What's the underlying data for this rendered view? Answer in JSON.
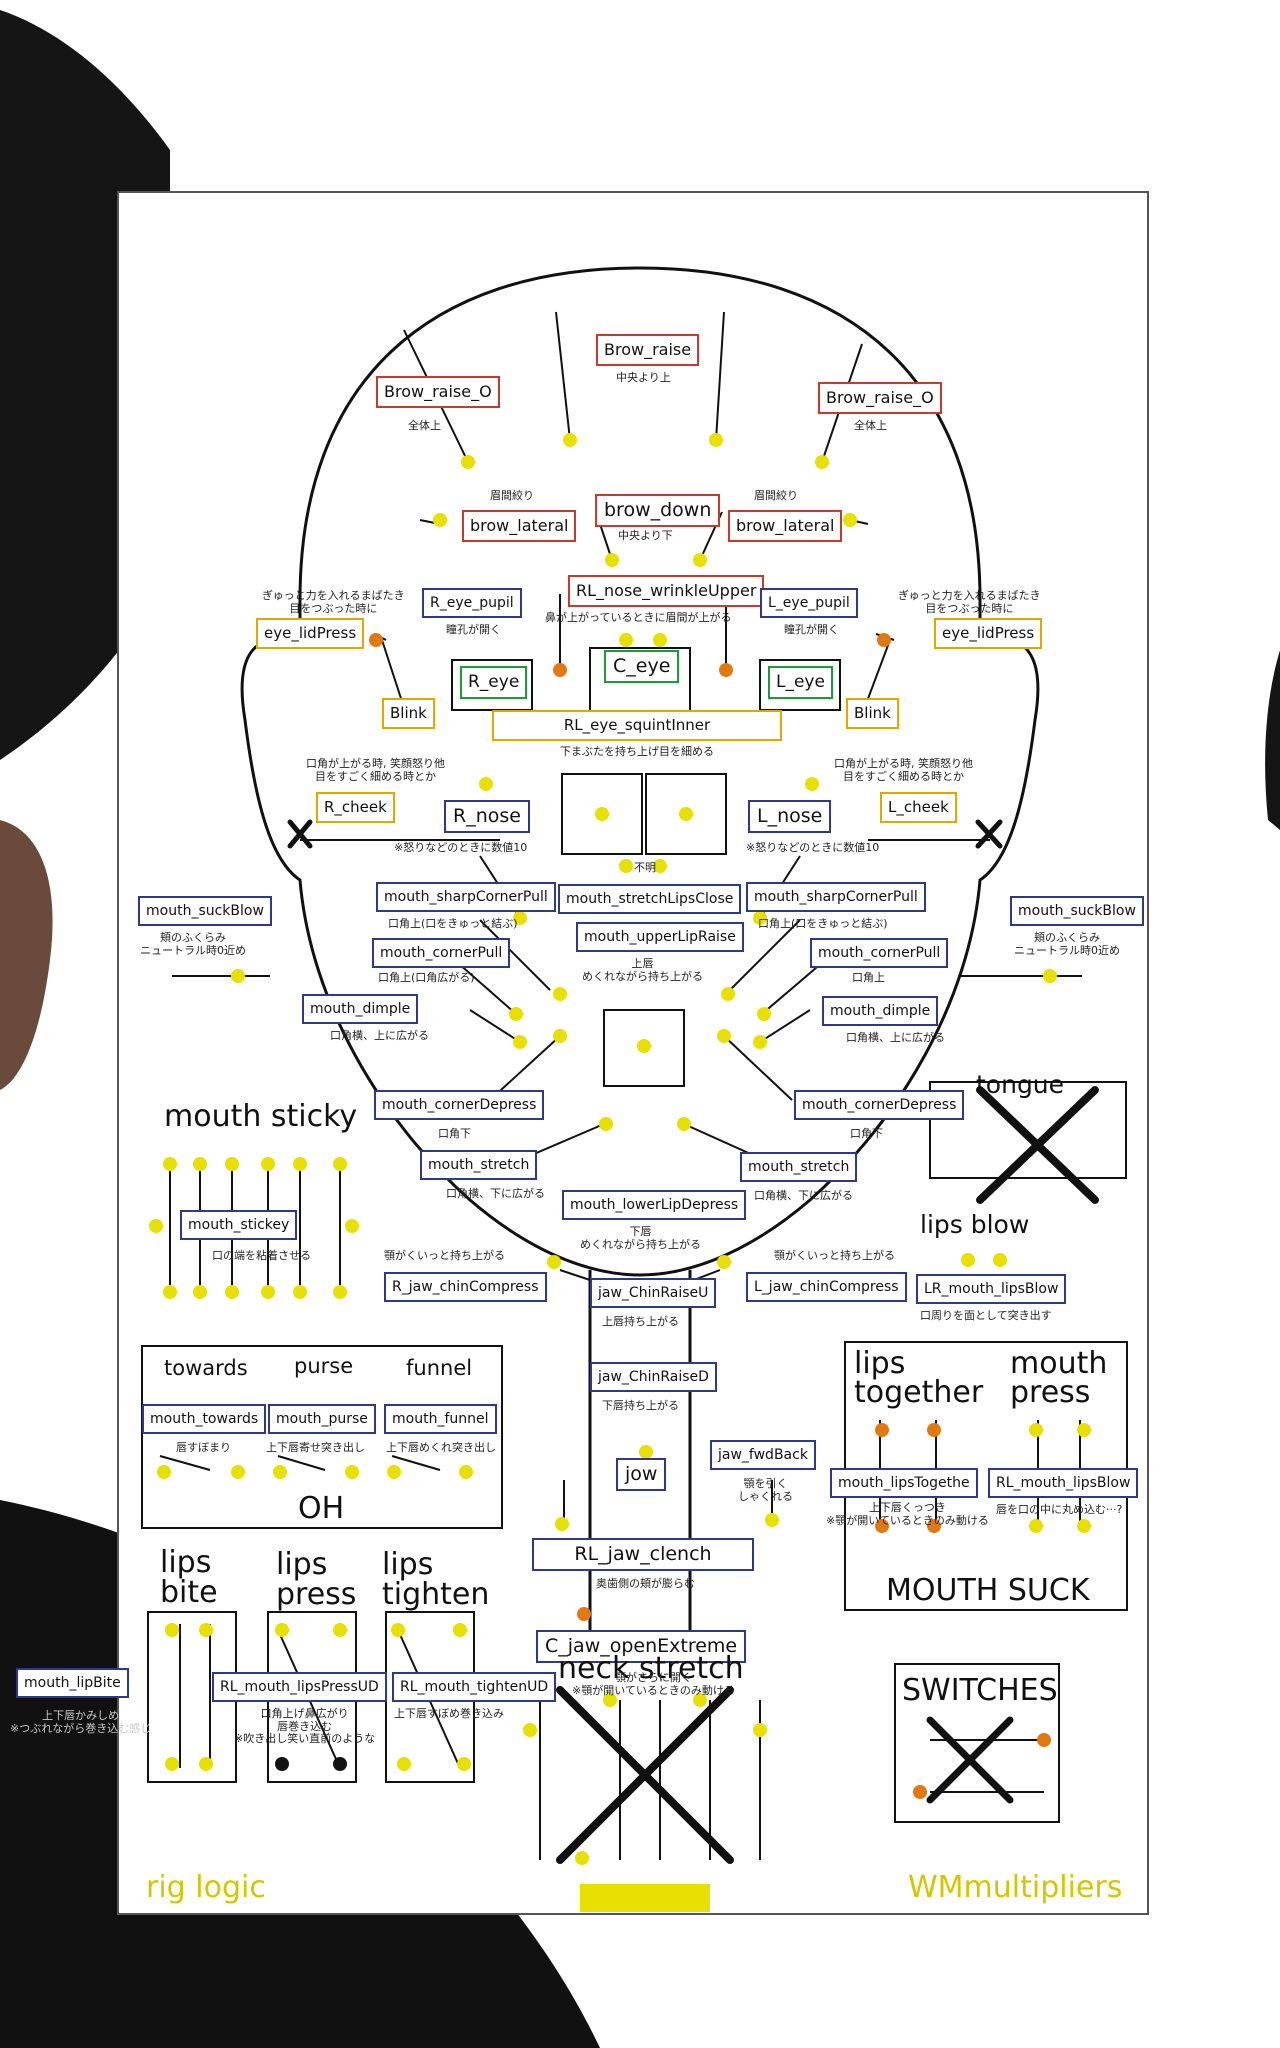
{
  "labels": {
    "brow_raise": "Brow_raise",
    "brow_raise_note": "中央より上",
    "brow_raise_o_r": "Brow_raise_O",
    "brow_raise_o_l": "Brow_raise_O",
    "all_up_r": "全体上",
    "all_up_l": "全体上",
    "brow_down": "brow_down",
    "brow_down_note": "中央より下",
    "brow_lateral_r": "brow_lateral",
    "brow_lateral_l": "brow_lateral",
    "brow_squeeze_r": "眉間絞り",
    "brow_squeeze_l": "眉間絞り",
    "rl_nose_wrinkle": "RL_nose_wrinkleUpper",
    "rl_nose_wrinkle_note": "鼻が上がっているときに眉間が上がる",
    "r_eye_pupil": "R_eye_pupil",
    "l_eye_pupil": "L_eye_pupil",
    "pupil_note_r": "瞳孔が開く",
    "pupil_note_l": "瞳孔が開く",
    "eye_lidpress_r": "eye_lidPress",
    "eye_lidpress_l": "eye_lidPress",
    "lidpress_note_r": "ぎゅっと力を入れるまばたき\n目をつぶった時に",
    "lidpress_note_l": "ぎゅっと力を入れるまばたき\n目をつぶった時に",
    "r_eye": "R_eye",
    "c_eye": "C_eye",
    "l_eye": "L_eye",
    "blink_r": "Blink",
    "blink_l": "Blink",
    "rl_eye_squint": "RL_eye_squintInner",
    "squint_note": "下まぶたを持ち上げ目を細める",
    "cheek_note_r": "口角が上がる時, 笑顔怒り他\n目をすごく細める時とか",
    "cheek_note_l": "口角が上がる時, 笑顔怒り他\n目をすごく細める時とか",
    "r_cheek": "R_cheek",
    "l_cheek": "L_cheek",
    "r_nose": "R_nose",
    "l_nose": "L_nose",
    "nose_note_r": "※怒りなどのときに数値10",
    "nose_note_l": "※怒りなどのときに数値10",
    "unknown": "不明",
    "mouth_sharp_r": "mouth_sharpCornerPull",
    "mouth_sharp_l": "mouth_sharpCornerPull",
    "sharp_note_r": "口角上(口をきゅっと結ぶ)",
    "sharp_note_l": "口角上(口をきゅっと結ぶ)",
    "mouth_stretchlips": "mouth_stretchLipsClose",
    "mouth_upperlip": "mouth_upperLipRaise",
    "upperlip_note": "上唇\nめくれながら持ち上がる",
    "mouth_suckblow_r": "mouth_suckBlow",
    "mouth_suckblow_l": "mouth_suckBlow",
    "suckblow_note_r": "頬のふくらみ\nニュートラル時0近め",
    "suckblow_note_l": "頬のふくらみ\nニュートラル時0近め",
    "mouth_cornerpull_r": "mouth_cornerPull",
    "mouth_cornerpull_l": "mouth_cornerPull",
    "cornerpull_note_r": "口角上(口角広がる)",
    "cornerpull_note_l": "口角上",
    "mouth_dimple_r": "mouth_dimple",
    "mouth_dimple_l": "mouth_dimple",
    "dimple_note_r": "口角横、上に広がる",
    "dimple_note_l": "口角横、上に広がる",
    "mouth_sticky_title": "mouth sticky",
    "mouth_cornerdepress_r": "mouth_cornerDepress",
    "mouth_cornerdepress_l": "mouth_cornerDepress",
    "cornerdepress_note_r": "口角下",
    "cornerdepress_note_l": "口角下",
    "tongue": "tongue",
    "mouth_stretch_r": "mouth_stretch",
    "mouth_stretch_l": "mouth_stretch",
    "stretch_note_r": "口角横、下に広がる",
    "stretch_note_l": "口角横、下に広がる",
    "mouth_lowerlip": "mouth_lowerLipDepress",
    "lowerlip_note": "下唇\nめくれながら持ち上がる",
    "mouth_stickey": "mouth_stickey",
    "stickey_note": "口の端を粘着させる",
    "lips_blow": "lips blow",
    "lr_lipsblow": "LR_mouth_lipsBlow",
    "lipsblow_note": "口周りを面として突き出す",
    "chin_note_r": "顎がくいっと持ち上がる",
    "chin_note_l": "顎がくいっと持ち上がる",
    "r_jaw_chin": "R_jaw_chinCompress",
    "l_jaw_chin": "L_jaw_chinCompress",
    "jaw_chinraiseu": "jaw_ChinRaiseU",
    "chinraiseu_note": "上唇持ち上がる",
    "jaw_chinraised": "jaw_ChinRaiseD",
    "chinraised_note": "下唇持ち上がる",
    "towards": "towards",
    "purse": "purse",
    "funnel": "funnel",
    "mouth_towards": "mouth_towards",
    "mouth_purse": "mouth_purse",
    "mouth_funnel": "mouth_funnel",
    "towards_note": "唇すぼまり",
    "purse_note": "上下唇寄せ突き出し",
    "funnel_note": "上下唇めくれ突き出し",
    "oh": "OH",
    "lips_together": "lips\ntogether",
    "mouth_press": "mouth\npress",
    "jaw_fwdback": "jaw_fwdBack",
    "fwdback_note": "顎を引く\nしゃくれる",
    "jow": "jow",
    "mouth_lipstogether": "mouth_lipsTogethe",
    "lipstogether_note": "上下唇くっつき\n※顎が開いているときのみ動ける",
    "rl_lipsblow": "RL_mouth_lipsBlow",
    "lipsblow2_note": "唇を口の中に丸め込む···?",
    "rl_jaw_clench": "RL_jaw_clench",
    "clench_note": "奥歯側の頬が膨らむ",
    "mouth_suck": "MOUTH SUCK",
    "lips_bite": "lips\nbite",
    "lips_press": "lips\npress",
    "lips_tighten": "lips\ntighten",
    "c_jaw_open": "C_jaw_openExtreme",
    "jaw_open_note": "顎がさらに開く\n※顎が開いているときのみ動ける",
    "neck_stretch": "neck stretch",
    "mouth_lipbite": "mouth_lipBite",
    "lipbite_note": "上下唇かみしめ\n※つぶれながら巻き込む感じ",
    "rl_lipspress": "RL_mouth_lipsPressUD",
    "lipspress_note": "口角上げ鼻広がり\n唇巻き込む\n※吹き出し笑い直前のような",
    "rl_tighten": "RL_mouth_tightenUD",
    "tighten_note": "上下唇すぼめ巻き込み",
    "switches": "SWITCHES",
    "rig_logic": "rig logic",
    "wm_multipliers": "WMmultipliers"
  },
  "colors": {
    "control_dot": "#e8e000",
    "orange_dot": "#e07a10",
    "border_red": "#c93a2a",
    "border_blue": "#2b3a8c",
    "border_yellow": "#e2a800",
    "border_green": "#1d9b3a",
    "brand": "#d6c600"
  }
}
